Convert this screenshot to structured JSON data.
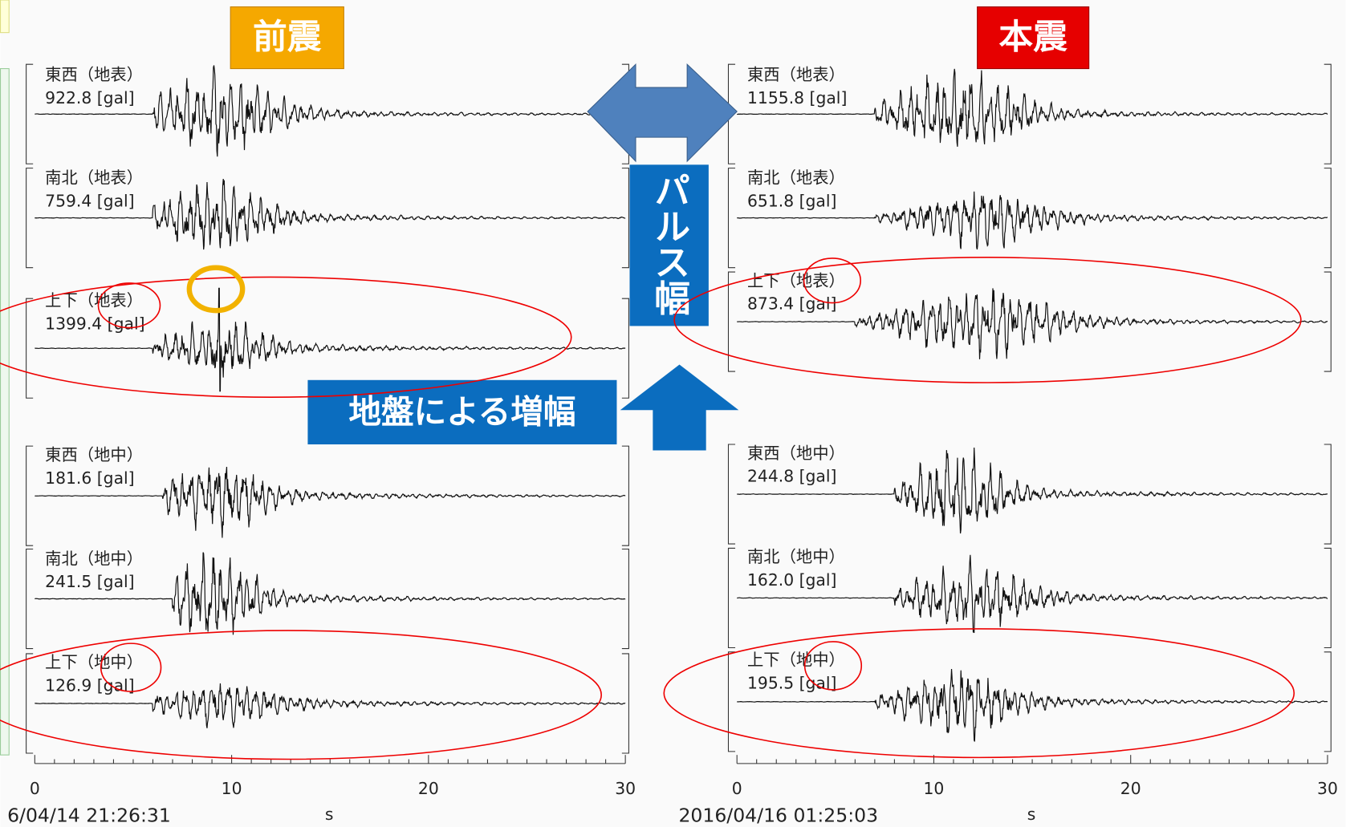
{
  "panels": [
    {
      "title": "前震",
      "timestamp": "6/04/14 21:26:31",
      "axis_unit": "s",
      "ticks": [
        "0",
        "10",
        "20",
        "30"
      ],
      "traces": [
        {
          "label": "東西（地表）",
          "peak": "922.8 [gal]"
        },
        {
          "label": "南北（地表）",
          "peak": "759.4 [gal]"
        },
        {
          "label": "上下（地表）",
          "peak": "1399.4 [gal]"
        },
        {
          "label": "東西（地中）",
          "peak": "181.6 [gal]"
        },
        {
          "label": "南北（地中）",
          "peak": "241.5 [gal]"
        },
        {
          "label": "上下（地中）",
          "peak": "126.9 [gal]"
        }
      ]
    },
    {
      "title": "本震",
      "timestamp": "2016/04/16 01:25:03",
      "axis_unit": "s",
      "ticks": [
        "0",
        "10",
        "20",
        "30"
      ],
      "traces": [
        {
          "label": "東西（地表）",
          "peak": "1155.8 [gal]"
        },
        {
          "label": "南北（地表）",
          "peak": "651.8 [gal]"
        },
        {
          "label": "上下（地表）",
          "peak": "873.4 [gal]"
        },
        {
          "label": "東西（地中）",
          "peak": "244.8 [gal]"
        },
        {
          "label": "南北（地中）",
          "peak": "162.0 [gal]"
        },
        {
          "label": "上下（地中）",
          "peak": "195.5 [gal]"
        }
      ]
    }
  ],
  "annotations": {
    "pulse_width": "パルス幅",
    "amplification": "地盤による増幅"
  }
}
